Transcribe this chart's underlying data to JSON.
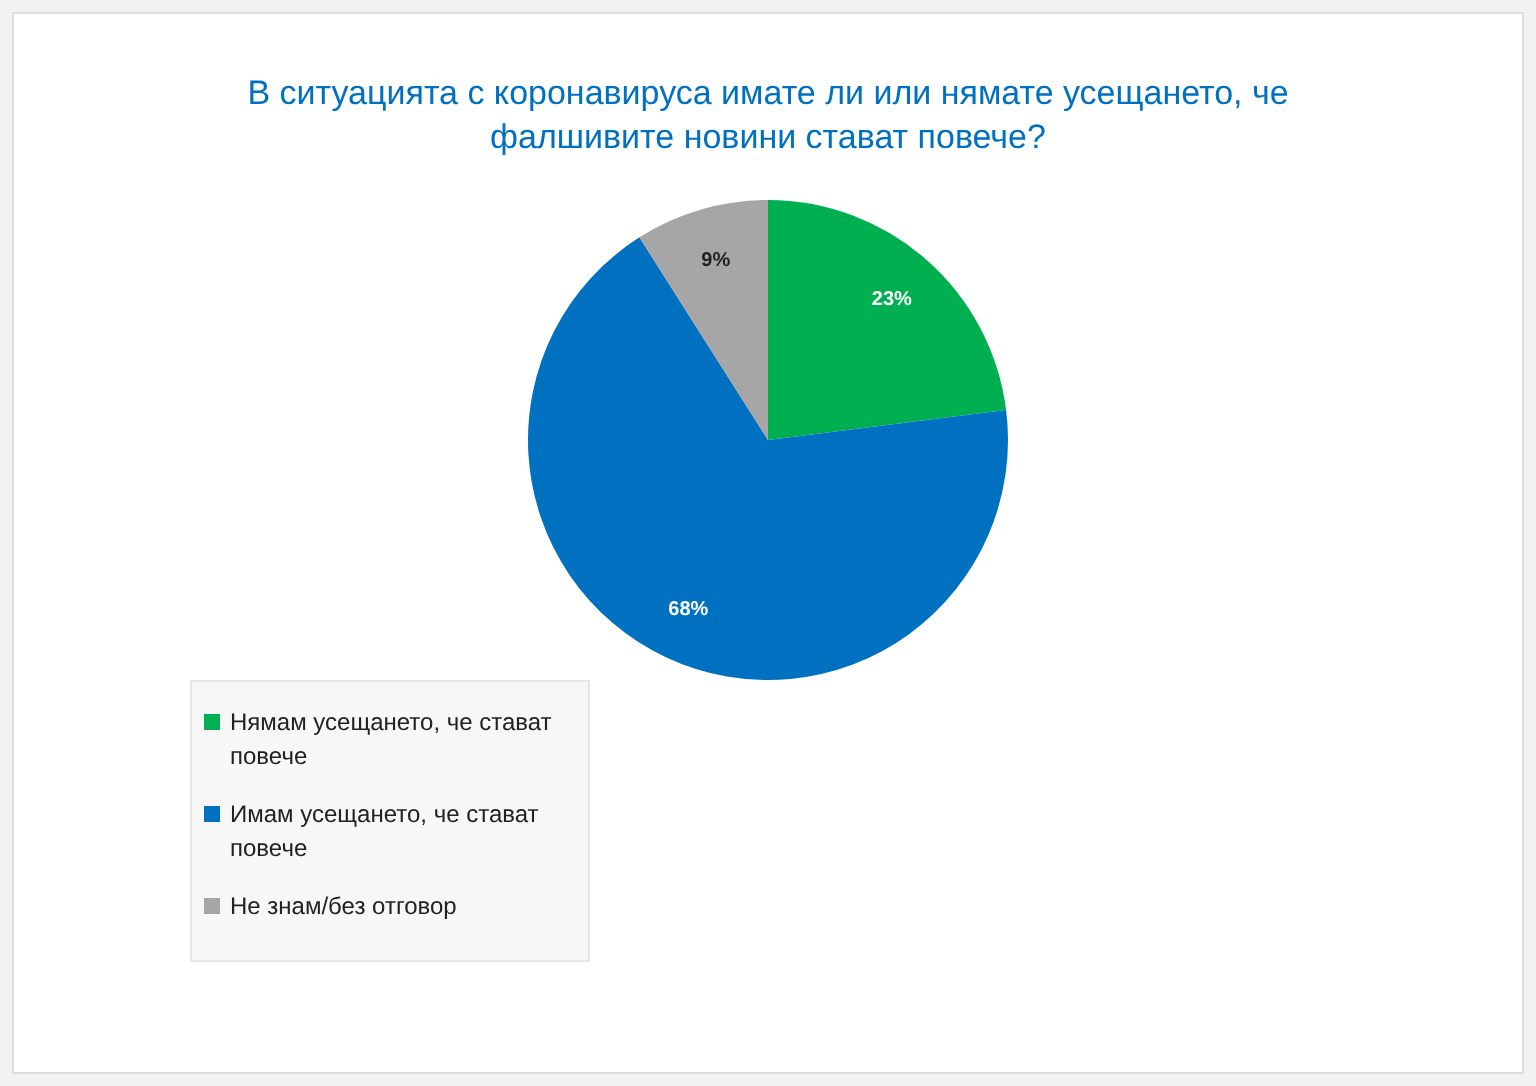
{
  "chart_data": {
    "type": "pie",
    "title": "В ситуацията с коронавируса имате ли или нямате усещането, че фалшивите новини стават повече?",
    "categories": [
      "Нямам усещането, че стават повече",
      "Имам усещането, че стават повече",
      "Не знам/без отговор"
    ],
    "values": [
      23,
      68,
      9
    ],
    "colors": [
      "#00b050",
      "#0070c0",
      "#a6a6a6"
    ],
    "value_labels": [
      "23%",
      "68%",
      "9%"
    ],
    "legend": "bottom left"
  }
}
